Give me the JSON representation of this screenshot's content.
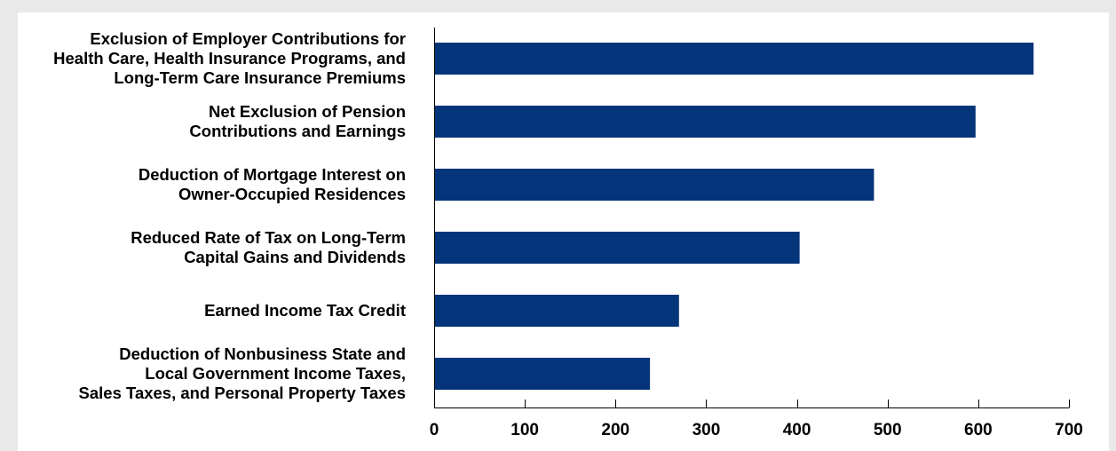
{
  "chart_data": {
    "type": "bar",
    "orientation": "horizontal",
    "categories": [
      [
        "Exclusion of Employer Contributions for",
        "Health Care, Health Insurance Programs, and",
        "Long-Term Care Insurance Premiums"
      ],
      [
        "Net Exclusion of Pension",
        "Contributions and Earnings"
      ],
      [
        "Deduction of Mortgage Interest on",
        "Owner-Occupied Residences"
      ],
      [
        "Reduced Rate of Tax on Long-Term",
        "Capital Gains and Dividends"
      ],
      [
        "Earned Income Tax Credit"
      ],
      [
        "Deduction of Nonbusiness State and",
        "Local Government Income Taxes,",
        "Sales Taxes, and Personal Property Taxes"
      ]
    ],
    "values": [
      661,
      597,
      485,
      403,
      270,
      238
    ],
    "xlim": [
      0,
      700
    ],
    "xticks": [
      "0",
      "100",
      "200",
      "300",
      "400",
      "500",
      "600",
      "700"
    ],
    "title": "",
    "xlabel": "",
    "ylabel": "",
    "grid": false,
    "legend": "none",
    "bar_color": "#043479",
    "background_color": "#ffffff",
    "frame_color": "#e9e9e9"
  }
}
